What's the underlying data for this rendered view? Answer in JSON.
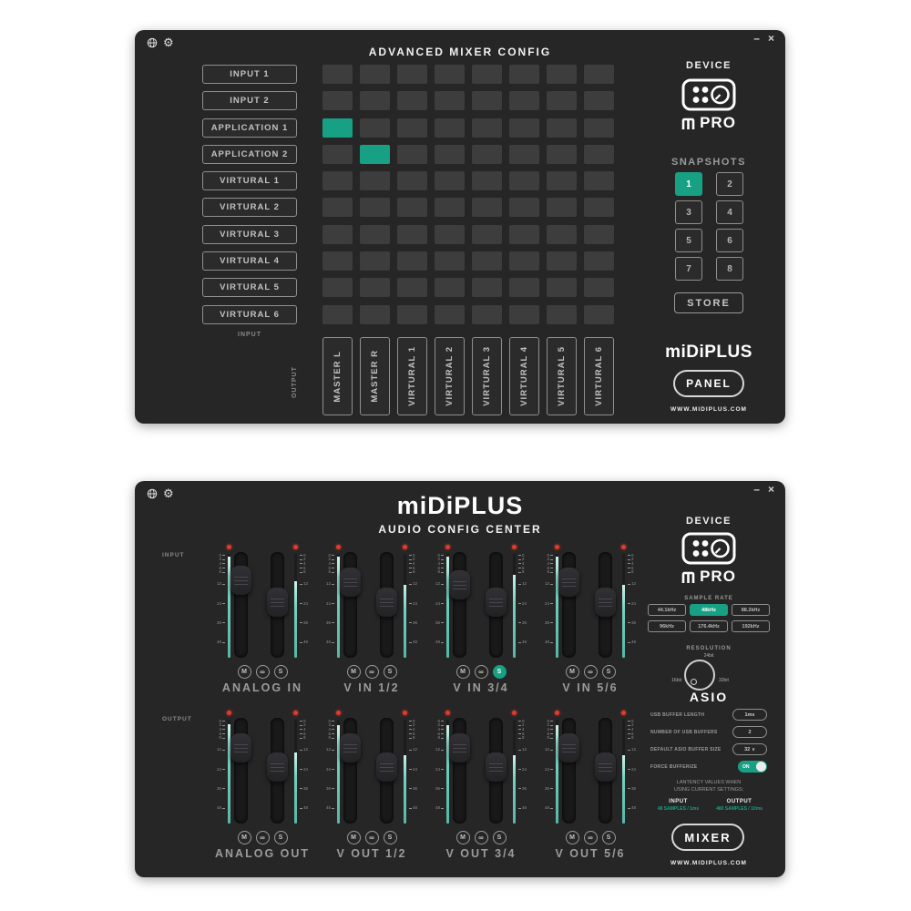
{
  "accent_color": "#18a085",
  "meter_color": "#74cfc0",
  "led_color": "#e23a2c",
  "icons": {
    "globe": "globe-icon",
    "gear": "⚙",
    "minimize": "–",
    "close": "×",
    "chevron_down": "∨",
    "link_glyph": "∞"
  },
  "top_window": {
    "title": "ADVANCED MIXER CONFIG",
    "matrix": {
      "row_axis_label": "INPUT",
      "col_axis_label": "OUTPUT",
      "rows": [
        "INPUT 1",
        "INPUT 2",
        "APPLICATION 1",
        "APPLICATION 2",
        "VIRTURAL 1",
        "VIRTURAL 2",
        "VIRTURAL 3",
        "VIRTURAL 4",
        "VIRTURAL 5",
        "VIRTURAL 6"
      ],
      "cols": [
        "MASTER L",
        "MASTER R",
        "VIRTURAL 1",
        "VIRTURAL 2",
        "VIRTURAL 3",
        "VIRTURAL 4",
        "VIRTURAL 5",
        "VIRTURAL 6"
      ],
      "active_cells": [
        [
          2,
          0
        ],
        [
          3,
          1
        ]
      ]
    },
    "device": {
      "label": "DEVICE",
      "model": "PRO"
    },
    "snapshots": {
      "label": "SNAPSHOTS",
      "buttons": [
        "1",
        "2",
        "3",
        "4",
        "5",
        "6",
        "7",
        "8"
      ],
      "active": "1",
      "store_label": "STORE"
    },
    "brand_logo": "miDiPLUS",
    "panel_button": "PANEL",
    "website": "WWW.MIDIPLUS.COM"
  },
  "bottom_window": {
    "logo": "miDiPLUS",
    "subtitle": "AUDIO CONFIG CENTER",
    "input_section_label": "INPUT",
    "output_section_label": "OUTPUT",
    "scale_ticks": [
      "0",
      "2",
      "4",
      "6",
      "8",
      "12",
      "24",
      "36",
      "48"
    ],
    "channel_buttons": {
      "mute": "M",
      "link": "∞",
      "solo": "S"
    },
    "fader_groups": [
      {
        "label": "ANALOG IN",
        "row": "input",
        "col": 0,
        "knob_l": 18,
        "knob_r": 46,
        "meter_l": 97,
        "meter_r": 74,
        "solo": false
      },
      {
        "label": "V IN 1/2",
        "row": "input",
        "col": 1,
        "knob_l": 20,
        "knob_r": 46,
        "meter_l": 97,
        "meter_r": 70,
        "solo": false
      },
      {
        "label": "V IN 3/4",
        "row": "input",
        "col": 2,
        "knob_l": 24,
        "knob_r": 46,
        "meter_l": 97,
        "meter_r": 80,
        "solo": true
      },
      {
        "label": "V IN 5/6",
        "row": "input",
        "col": 3,
        "knob_l": 20,
        "knob_r": 46,
        "meter_l": 97,
        "meter_r": 70,
        "solo": false
      },
      {
        "label": "ANALOG OUT",
        "row": "output",
        "col": 0,
        "knob_l": 20,
        "knob_r": 45,
        "meter_l": 96,
        "meter_r": 68,
        "solo": false
      },
      {
        "label": "V OUT 1/2",
        "row": "output",
        "col": 1,
        "knob_l": 20,
        "knob_r": 45,
        "meter_l": 95,
        "meter_r": 66,
        "solo": false
      },
      {
        "label": "V OUT 3/4",
        "row": "output",
        "col": 2,
        "knob_l": 20,
        "knob_r": 45,
        "meter_l": 95,
        "meter_r": 66,
        "solo": false
      },
      {
        "label": "V OUT 5/6",
        "row": "output",
        "col": 3,
        "knob_l": 20,
        "knob_r": 45,
        "meter_l": 95,
        "meter_r": 66,
        "solo": false
      }
    ],
    "device": {
      "label": "DEVICE",
      "model": "PRO"
    },
    "sample_rate": {
      "label": "SAMPLE RATE",
      "options": [
        "44.1kHz",
        "48kHz",
        "88.2kHz",
        "96kHz",
        "176.4kHz",
        "192kHz"
      ],
      "active": "48kHz"
    },
    "resolution": {
      "label": "RESOLUTION",
      "top": "24bit",
      "left": "16bit",
      "right": "32bit"
    },
    "asio": {
      "title": "ASIO",
      "rows": [
        {
          "label": "USB BUFFER LENGTH",
          "type": "pill",
          "value": "1ms"
        },
        {
          "label": "NUMBER OF USB BUFFERS",
          "type": "pill",
          "value": "2"
        },
        {
          "label": "DEFAULT ASIO BUFFER SIZE",
          "type": "dropdown",
          "value": "32"
        },
        {
          "label": "FORCE BUFFERIZE",
          "type": "toggle",
          "value": "ON"
        }
      ],
      "latency_note_line1": "LANTENCY VALUES WHEN",
      "latency_note_line2": "USING CURRENT SETTINGS:",
      "latency": {
        "input_label": "INPUT",
        "input_value": "48 SAMPLES / 1ms",
        "output_label": "OUTPUT",
        "output_value": "480 SAMPLES / 10ms"
      }
    },
    "mixer_button": "MIXER",
    "website": "WWW.MIDIPLUS.COM"
  }
}
